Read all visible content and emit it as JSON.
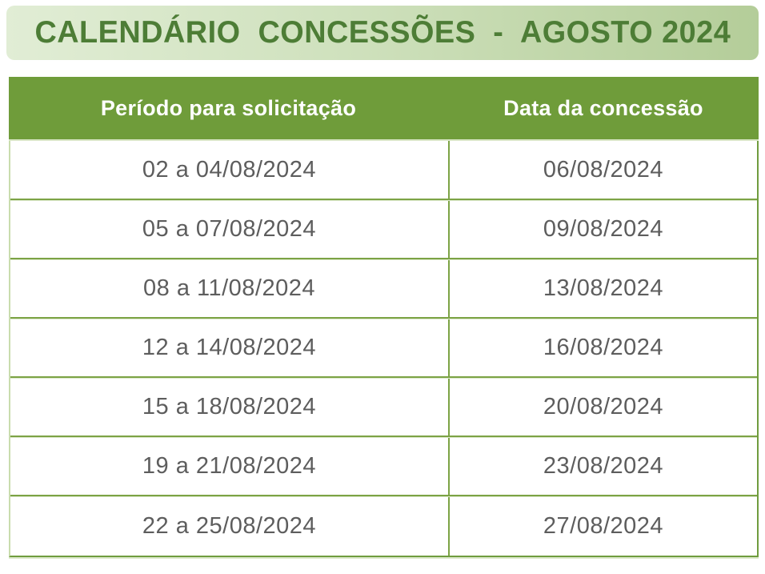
{
  "banner": {
    "title": "CALENDÁRIO  CONCESSÕES  -  AGOSTO 2024"
  },
  "chart_data": {
    "type": "table",
    "title": "CALENDÁRIO CONCESSÕES - AGOSTO 2024",
    "columns": [
      "Período para solicitação",
      "Data da concessão"
    ],
    "rows": [
      [
        "02 a 04/08/2024",
        "06/08/2024"
      ],
      [
        "05 a 07/08/2024",
        "09/08/2024"
      ],
      [
        "08 a 11/08/2024",
        "13/08/2024"
      ],
      [
        "12 a 14/08/2024",
        "16/08/2024"
      ],
      [
        "15 a 18/08/2024",
        "20/08/2024"
      ],
      [
        "19 a 21/08/2024",
        "23/08/2024"
      ],
      [
        "22 a 25/08/2024",
        "27/08/2024"
      ]
    ]
  },
  "colors": {
    "banner_gradient_start": "#e1edd5",
    "banner_gradient_end": "#b4cd99",
    "title_text": "#4d7d36",
    "header_background": "#6f9c3a",
    "header_text": "#ffffff",
    "grid_line_dark": "#7ca345",
    "grid_line_light": "#dce8cb",
    "cell_text": "#5d5d5d",
    "page_background": "#ffffff"
  }
}
